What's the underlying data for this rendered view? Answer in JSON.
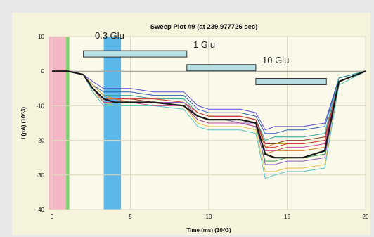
{
  "chart_data": {
    "type": "line",
    "title": "Sweep Plot #9 (at 239.977726 sec)",
    "xlabel": "Time (ms) (10^3)",
    "ylabel": "I (pA) (10^3)",
    "xlim": [
      0,
      20
    ],
    "ylim": [
      -40,
      10
    ],
    "x_ticks": [
      0,
      5,
      10,
      15,
      20
    ],
    "y_ticks": [
      10,
      0,
      -10,
      -20,
      -30,
      -40
    ],
    "grid": true,
    "annotations": [
      {
        "label": "0.3 Glu",
        "bar_x": [
          2,
          8.6
        ],
        "bar_y": 5
      },
      {
        "label": "1 Glu",
        "bar_x": [
          8.6,
          13
        ],
        "bar_y": 1
      },
      {
        "label": "10 Glu",
        "bar_x": [
          13,
          17.5
        ],
        "bar_y": -3
      }
    ],
    "bands": [
      {
        "x": [
          -0.2,
          0.9
        ],
        "color": "#f4b6c4"
      },
      {
        "x": [
          0.9,
          1.1
        ],
        "color": "#7ccf6a"
      },
      {
        "x": [
          3.3,
          4.4
        ],
        "color": "#5cb8e9"
      }
    ],
    "series": [
      {
        "color": "#1a1a1a",
        "width": 2.2,
        "values": [
          0,
          0,
          -1,
          -5,
          -8,
          -9,
          -9,
          -9,
          -10,
          -13,
          -14,
          -14,
          -14,
          -15,
          -24,
          -25,
          -25,
          -25,
          -23,
          -3,
          0
        ]
      },
      {
        "color": "#5b4fd8",
        "width": 1,
        "values": [
          0,
          0,
          -1,
          -3,
          -5,
          -5,
          -5,
          -6,
          -6,
          -10,
          -11,
          -11,
          -11,
          -12,
          -17,
          -16,
          -16,
          -16,
          -15,
          -2,
          0
        ]
      },
      {
        "color": "#2a5fb3",
        "width": 1,
        "values": [
          0,
          0,
          -1,
          -4,
          -6,
          -6,
          -6,
          -7,
          -7,
          -11,
          -12,
          -12,
          -12,
          -13,
          -18,
          -18,
          -17,
          -17,
          -16,
          -2,
          0
        ]
      },
      {
        "color": "#2ea3a0",
        "width": 1,
        "values": [
          0,
          0,
          -1,
          -4,
          -7,
          -7,
          -7,
          -8,
          -8,
          -12,
          -13,
          -13,
          -13,
          -14,
          -20,
          -19,
          -19,
          -19,
          -18,
          -2,
          0
        ]
      },
      {
        "color": "#c6a033",
        "width": 1,
        "values": [
          0,
          0,
          -1,
          -4,
          -7,
          -8,
          -8,
          -8,
          -9,
          -13,
          -14,
          -14,
          -14,
          -15,
          -22,
          -21,
          -21,
          -21,
          -20,
          -3,
          0
        ]
      },
      {
        "color": "#8a3d2c",
        "width": 1,
        "values": [
          0,
          0,
          -1,
          -5,
          -8,
          -8,
          -8,
          -9,
          -9,
          -12,
          -13,
          -13,
          -13,
          -14,
          -21,
          -21,
          -20,
          -20,
          -19,
          -3,
          0
        ]
      },
      {
        "color": "#d83a3a",
        "width": 1,
        "values": [
          0,
          0,
          -1,
          -5,
          -8,
          -8,
          -8,
          -8,
          -9,
          -12,
          -13,
          -13,
          -13,
          -14,
          -22,
          -22,
          -21,
          -21,
          -20,
          -3,
          0
        ]
      },
      {
        "color": "#e07a2b",
        "width": 1,
        "values": [
          0,
          0,
          -1,
          -5,
          -8,
          -8,
          -9,
          -9,
          -9,
          -13,
          -14,
          -14,
          -14,
          -15,
          -24,
          -23,
          -23,
          -23,
          -22,
          -3,
          0
        ]
      },
      {
        "color": "#3b9a4a",
        "width": 1,
        "values": [
          0,
          0,
          -1,
          -5,
          -9,
          -9,
          -9,
          -9,
          -10,
          -14,
          -15,
          -15,
          -15,
          -16,
          -26,
          -26,
          -25,
          -25,
          -24,
          -3,
          0
        ]
      },
      {
        "color": "#8b5bbf",
        "width": 1,
        "values": [
          0,
          0,
          -1,
          -5,
          -8,
          -9,
          -9,
          -9,
          -9,
          -13,
          -14,
          -14,
          -15,
          -15,
          -27,
          -27,
          -26,
          -26,
          -25,
          -3,
          0
        ]
      },
      {
        "color": "#e2c34a",
        "width": 1,
        "values": [
          0,
          0,
          -1,
          -6,
          -9,
          -10,
          -10,
          -10,
          -10,
          -15,
          -16,
          -16,
          -16,
          -17,
          -29,
          -29,
          -28,
          -28,
          -27,
          -4,
          0
        ]
      },
      {
        "color": "#58c4c6",
        "width": 1,
        "values": [
          0,
          0,
          -1,
          -6,
          -10,
          -10,
          -10,
          -10,
          -11,
          -16,
          -17,
          -17,
          -17,
          -18,
          -31,
          -30,
          -29,
          -29,
          -28,
          -4,
          0
        ]
      },
      {
        "color": "#c34fa2",
        "width": 1,
        "values": [
          0,
          0,
          -1,
          -5,
          -9,
          -9,
          -9,
          -10,
          -10,
          -14,
          -15,
          -15,
          -15,
          -16,
          -23,
          -23,
          -22,
          -22,
          -21,
          -3,
          0
        ]
      }
    ],
    "x": [
      0,
      1,
      2,
      2.6,
      3.3,
      4,
      5,
      6.5,
      8.4,
      9.3,
      10,
      11,
      12,
      13,
      13.6,
      14.2,
      15,
      16,
      17.4,
      18.3,
      20
    ]
  }
}
